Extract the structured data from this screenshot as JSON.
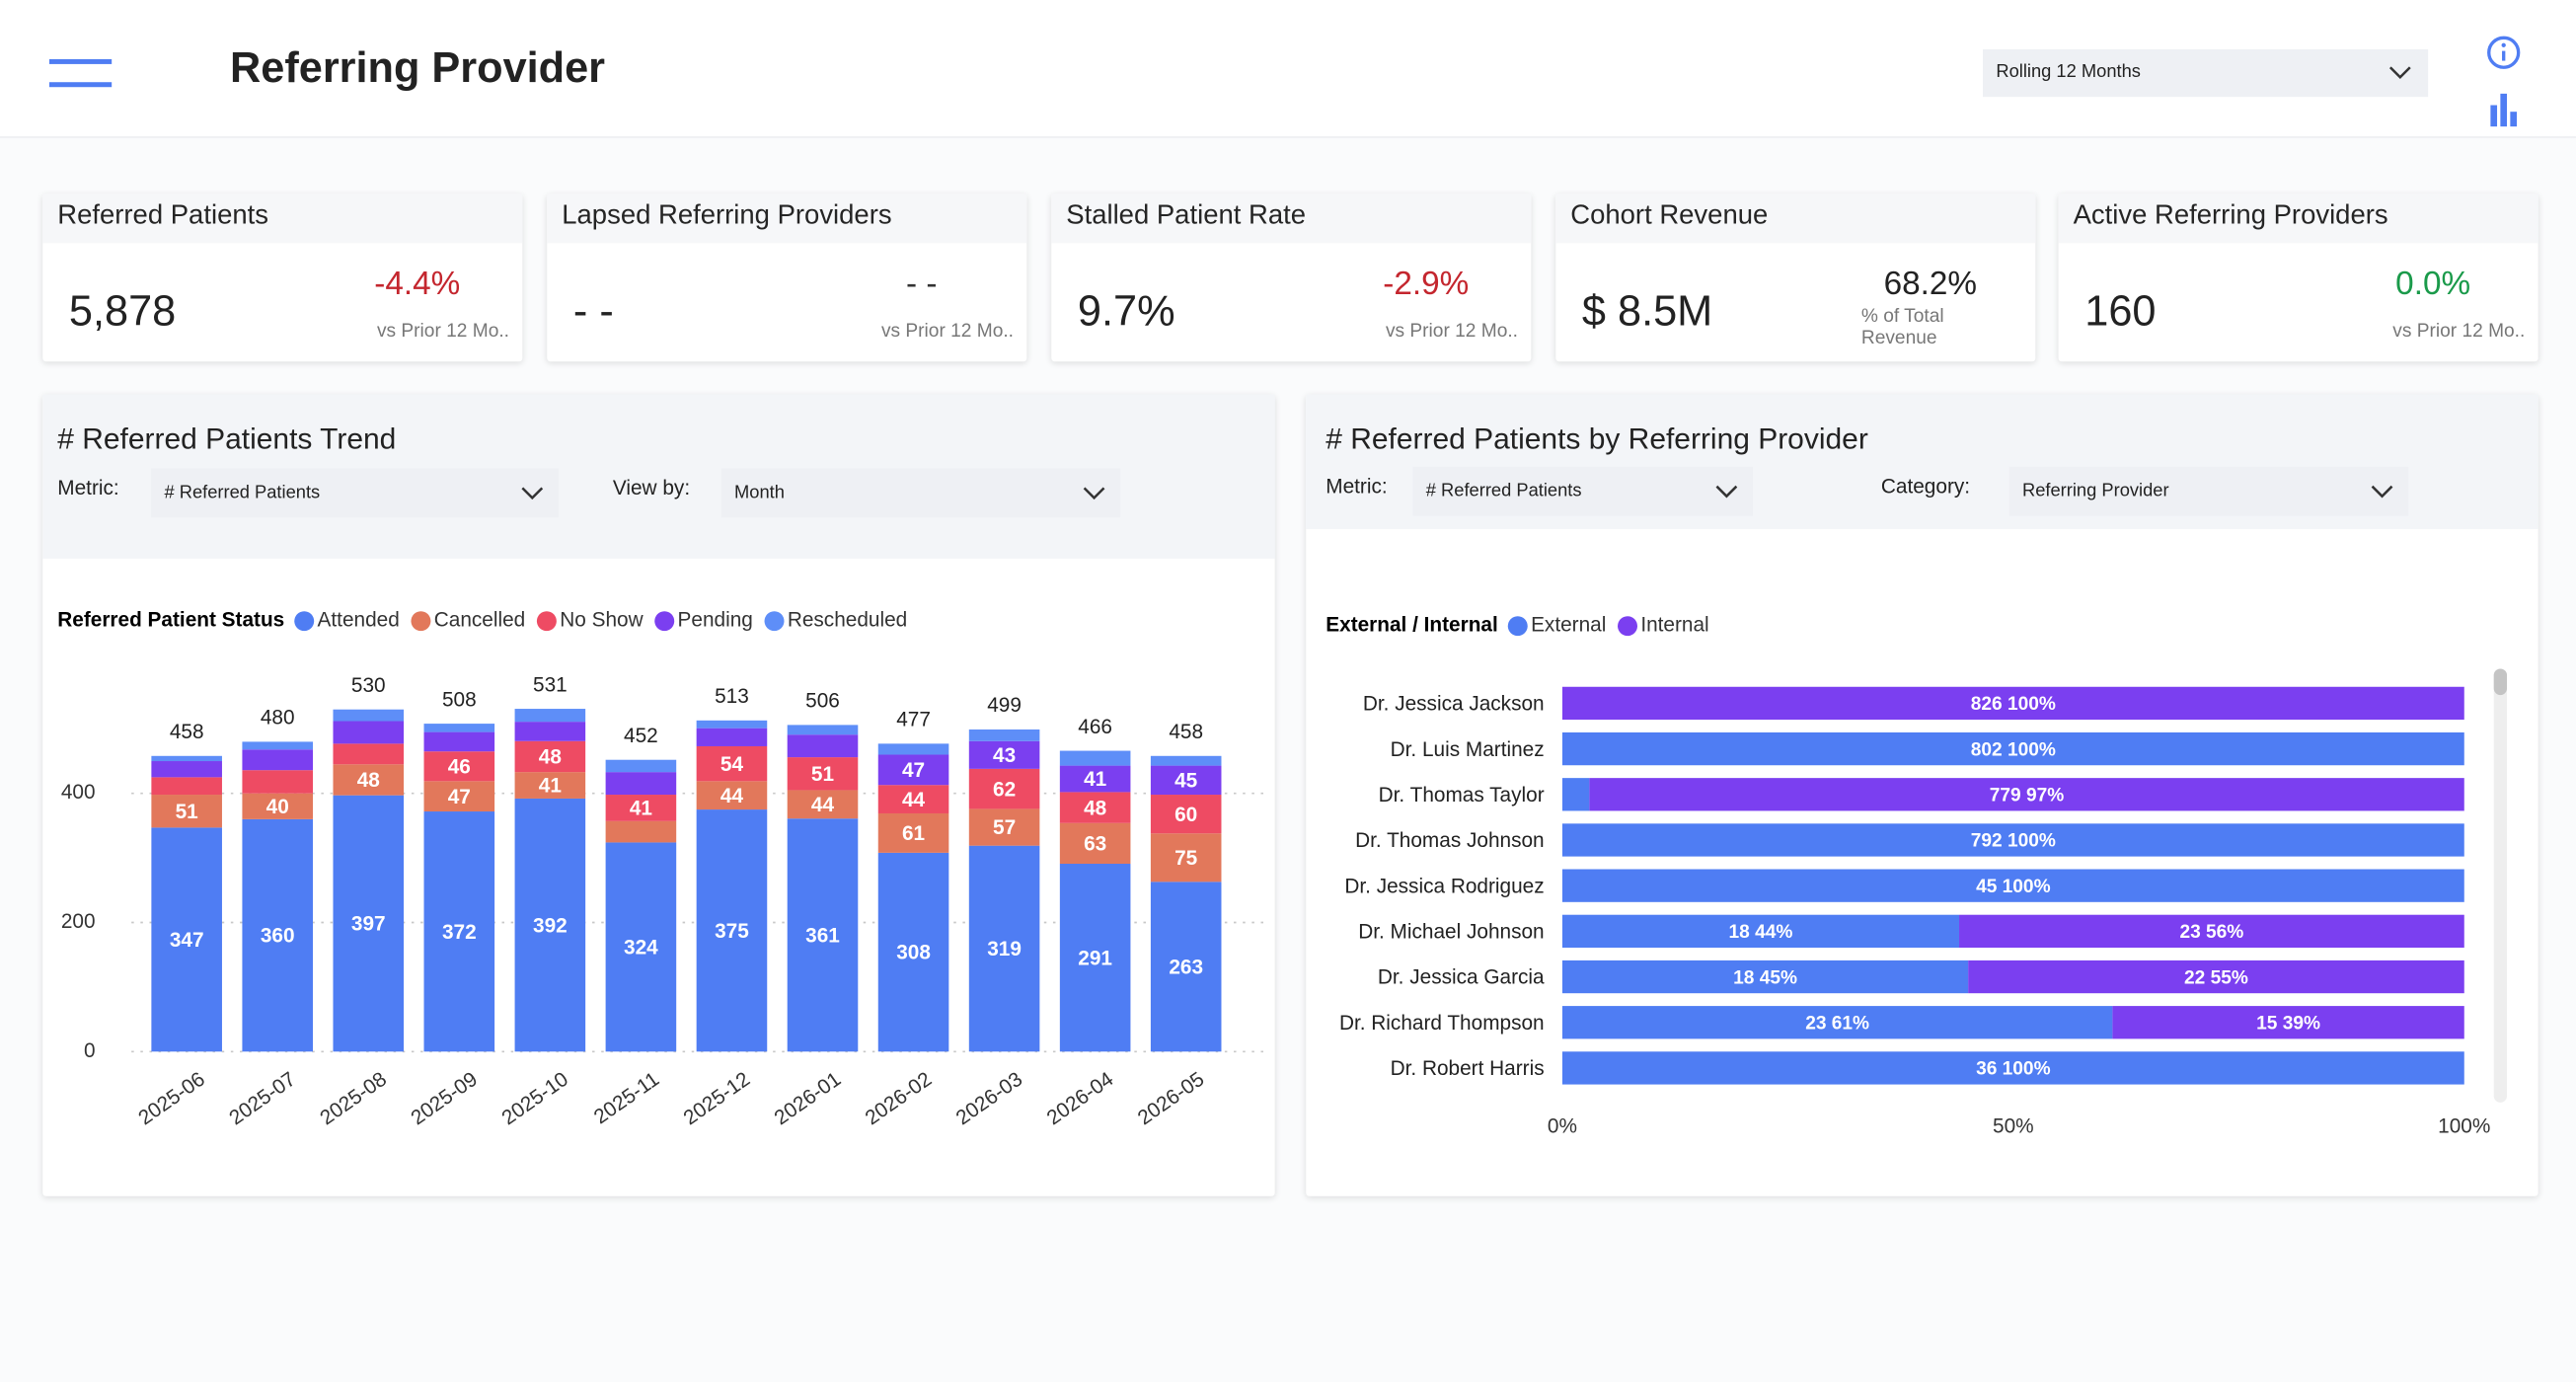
{
  "header": {
    "title": "Referring Provider",
    "period": "Rolling 12 Months"
  },
  "kpis": [
    {
      "title": "Referred Patients",
      "value": "5,878",
      "change": "-4.4%",
      "change_color": "#c4262e",
      "note": "vs Prior 12 Mo.."
    },
    {
      "title": "Lapsed Referring Providers",
      "value": "- -",
      "change": "- -",
      "change_color": "#333333",
      "note": "vs Prior 12 Mo.."
    },
    {
      "title": "Stalled Patient Rate",
      "value": "9.7%",
      "change": "-2.9%",
      "change_color": "#c4262e",
      "note": "vs Prior 12 Mo.."
    },
    {
      "title": "Cohort Revenue",
      "value": "$ 8.5M",
      "change": "68.2%",
      "change_color": "#222222",
      "note": "% of Total Revenue"
    },
    {
      "title": "Active Referring Providers",
      "value": "160",
      "change": "0.0%",
      "change_color": "#1a9a4a",
      "note": "vs Prior 12 Mo.."
    }
  ],
  "panels": [
    {
      "title": "# Referred Patients Trend",
      "controls": [
        {
          "label": "Metric:",
          "value": "# Referred Patients"
        },
        {
          "label": "View by:",
          "value": "Month"
        }
      ]
    },
    {
      "title": "# Referred Patients by Referring Provider",
      "controls": [
        {
          "label": "Metric:",
          "value": "# Referred Patients"
        },
        {
          "label": "Category:",
          "value": "Referring Provider"
        }
      ]
    }
  ],
  "chart_data": [
    {
      "type": "bar",
      "legend_title": "Referred Patient Status",
      "categories": [
        "2025-06",
        "2025-07",
        "2025-08",
        "2025-09",
        "2025-10",
        "2025-11",
        "2025-12",
        "2026-01",
        "2026-02",
        "2026-03",
        "2026-04",
        "2026-05"
      ],
      "series": [
        {
          "name": "Attended",
          "color": "#4f7df3",
          "values": [
            347,
            360,
            397,
            372,
            392,
            324,
            375,
            361,
            308,
            319,
            291,
            263
          ]
        },
        {
          "name": "Cancelled",
          "color": "#e2785b",
          "values": [
            51,
            40,
            48,
            47,
            41,
            33,
            44,
            44,
            61,
            57,
            63,
            75
          ]
        },
        {
          "name": "No Show",
          "color": "#ee4b63",
          "values": [
            27,
            36,
            32,
            46,
            48,
            41,
            54,
            51,
            44,
            62,
            48,
            60
          ]
        },
        {
          "name": "Pending",
          "color": "#7b3ff0",
          "values": [
            25,
            32,
            35,
            30,
            30,
            35,
            28,
            35,
            47,
            43,
            41,
            45
          ]
        },
        {
          "name": "Rescheduled",
          "color": "#5e8ef8",
          "values": [
            8,
            12,
            18,
            13,
            20,
            19,
            12,
            15,
            17,
            18,
            23,
            15
          ]
        }
      ],
      "total_labels": [
        458,
        480,
        530,
        508,
        531,
        452,
        513,
        506,
        477,
        499,
        466,
        458
      ],
      "ylim": [
        0,
        560
      ],
      "yticks": [
        0,
        200,
        400
      ],
      "grid": true
    },
    {
      "type": "barh",
      "legend_title": "External / Internal",
      "categories": [
        "Dr. Jessica Jackson",
        "Dr. Luis Martinez",
        "Dr. Thomas Taylor",
        "Dr. Thomas Johnson",
        "Dr. Jessica Rodriguez",
        "Dr. Michael Johnson",
        "Dr. Jessica Garcia",
        "Dr. Richard Thompson",
        "Dr. Robert Harris"
      ],
      "series": [
        {
          "name": "External",
          "color": "#4f7df3",
          "values": [
            null,
            100,
            3,
            100,
            100,
            44,
            45,
            61,
            100
          ],
          "value_labels": [
            null,
            "802 100%",
            null,
            "792 100%",
            "45 100%",
            "18 44%",
            "18 45%",
            "23 61%",
            "36 100%"
          ]
        },
        {
          "name": "Internal",
          "color": "#7b3ff0",
          "values": [
            100,
            null,
            97,
            null,
            null,
            56,
            55,
            39,
            null
          ],
          "value_labels": [
            "826 100%",
            null,
            "779 97%",
            null,
            null,
            "23 56%",
            "22 55%",
            "15 39%",
            null
          ]
        }
      ],
      "xlim": [
        0,
        100
      ],
      "xticks": [
        {
          "value": 0,
          "label": "0%"
        },
        {
          "value": 50,
          "label": "50%"
        },
        {
          "value": 100,
          "label": "100%"
        }
      ]
    }
  ]
}
